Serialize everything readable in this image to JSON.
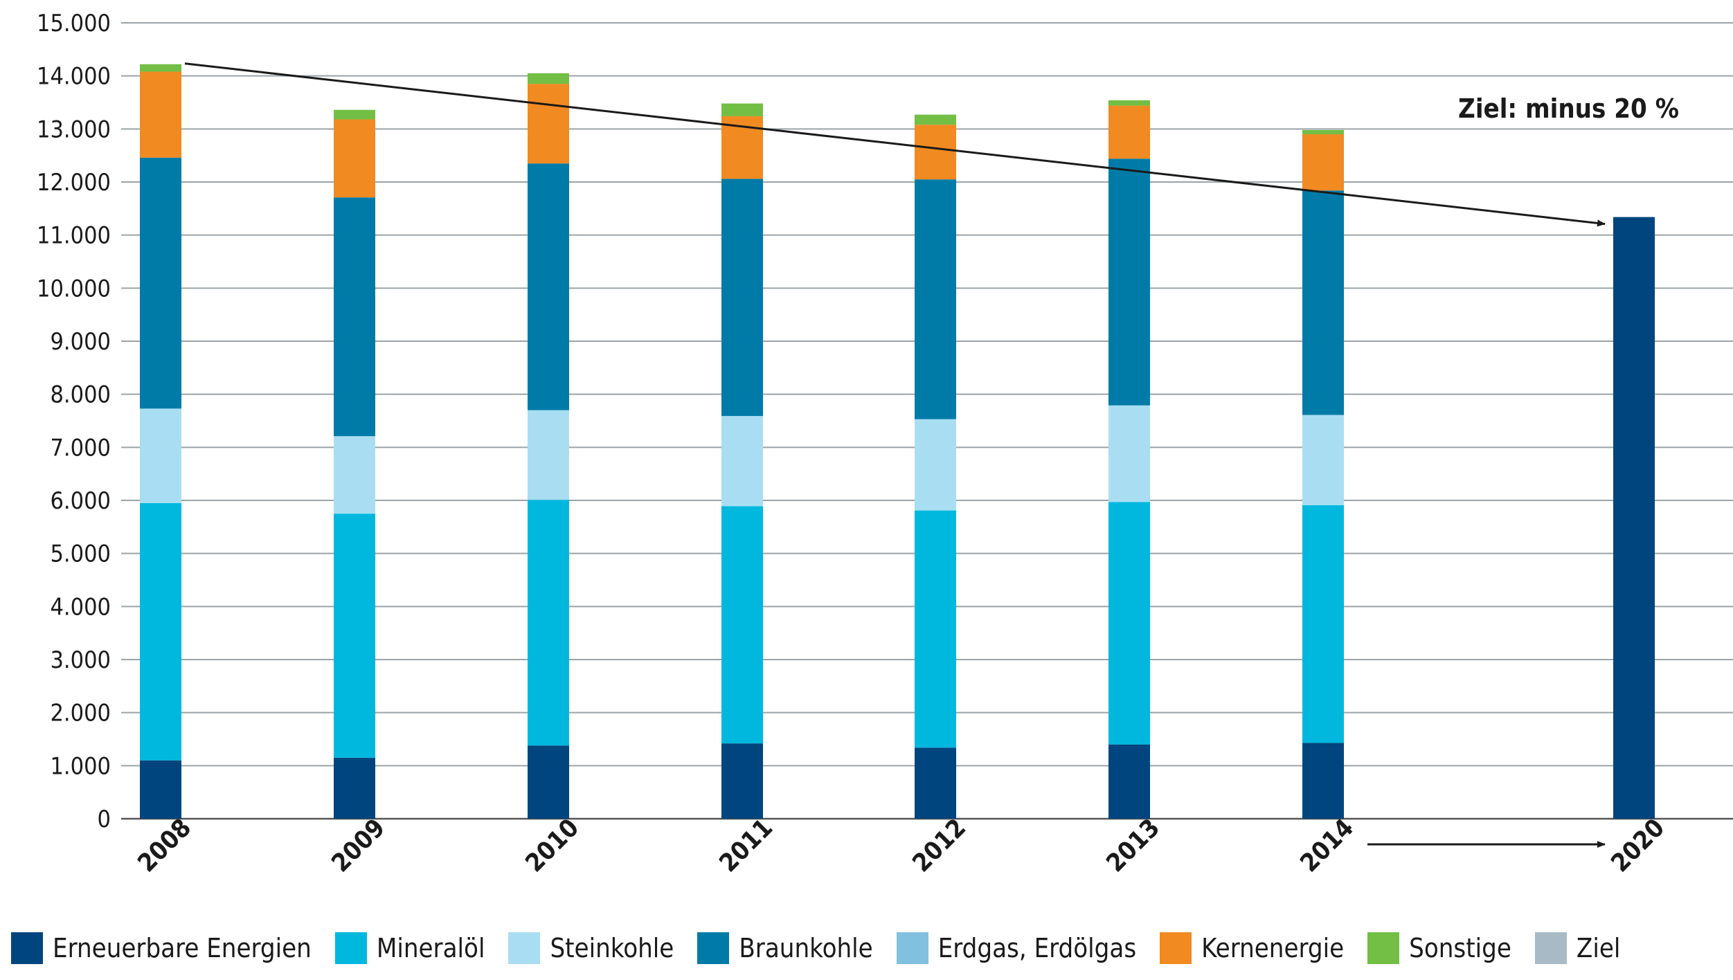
{
  "chart_data": {
    "type": "bar",
    "stacked": true,
    "categories": [
      "2008",
      "2009",
      "2010",
      "2011",
      "2012",
      "2013",
      "2014",
      "2020"
    ],
    "y_ticks": [
      "0",
      "1.000",
      "2.000",
      "3.000",
      "4.000",
      "5.000",
      "6.000",
      "7.000",
      "8.000",
      "9.000",
      "10.000",
      "11.000",
      "12.000",
      "13.000",
      "14.000",
      "15.000"
    ],
    "ylim": [
      0,
      15000
    ],
    "grid": true,
    "legend_position": "bottom",
    "series": [
      {
        "name": "Erneuerbare Energien",
        "color": "#00457d",
        "values": [
          1100,
          1150,
          1380,
          1420,
          1340,
          1400,
          1430,
          null
        ]
      },
      {
        "name": "Mineralöl",
        "color": "#00b8de",
        "values": [
          4850,
          4600,
          4630,
          4470,
          4470,
          4570,
          4480,
          null
        ]
      },
      {
        "name": "Steinkohle",
        "color": "#a9def2",
        "values": [
          1780,
          1460,
          1690,
          1700,
          1720,
          1820,
          1700,
          null
        ]
      },
      {
        "name": "Braunkohle",
        "color": "#007ba7",
        "values": [
          4730,
          4500,
          4650,
          4470,
          4520,
          4650,
          4230,
          null
        ]
      },
      {
        "name": "Erdgas, Erdölgas",
        "color": "#82c0e0",
        "values": [
          0,
          0,
          0,
          0,
          0,
          0,
          0,
          null
        ]
      },
      {
        "name": "Kernenergie",
        "color": "#f18a21",
        "values": [
          1620,
          1470,
          1500,
          1180,
          1030,
          1000,
          1060,
          null
        ]
      },
      {
        "name": "Sonstige",
        "color": "#73be44",
        "values": [
          140,
          180,
          200,
          240,
          190,
          100,
          80,
          null
        ]
      },
      {
        "name": "Ziel",
        "color": "#a8bac6",
        "values": [
          null,
          null,
          null,
          null,
          null,
          null,
          null,
          null
        ]
      }
    ],
    "target_bar": {
      "category": "2020",
      "value": 11340,
      "color": "#00457d"
    },
    "annotation": "Ziel: minus 20 %"
  }
}
